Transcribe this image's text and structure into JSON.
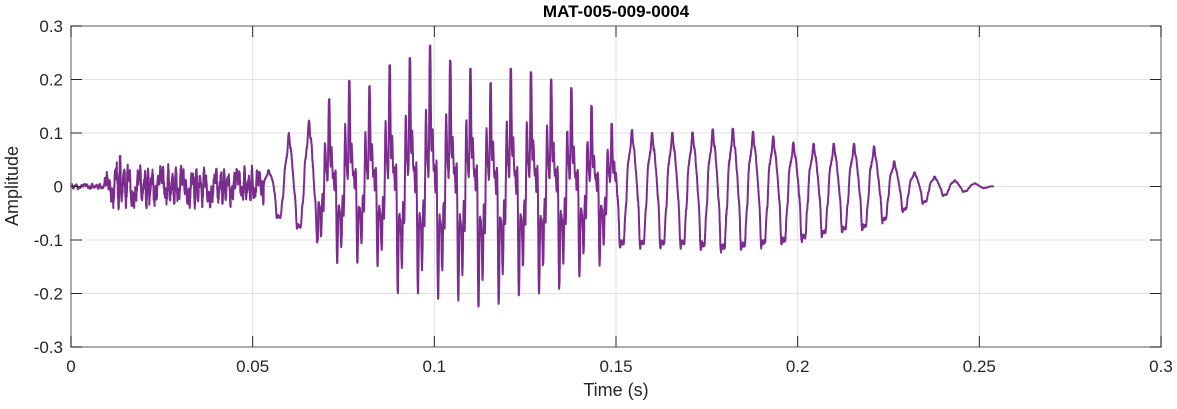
{
  "chart_data": {
    "type": "line",
    "title": "MAT-005-009-0004",
    "xlabel": "Time (s)",
    "ylabel": "Amplitude",
    "xlim": [
      0,
      0.3
    ],
    "ylim": [
      -0.3,
      0.3
    ],
    "grid": true,
    "xticks": [
      0,
      0.05,
      0.1,
      0.15,
      0.2,
      0.25,
      0.3
    ],
    "xtick_labels": [
      "0",
      "0.05",
      "0.1",
      "0.15",
      "0.2",
      "0.25",
      "0.3"
    ],
    "yticks": [
      -0.3,
      -0.2,
      -0.1,
      0,
      0.1,
      0.2,
      0.3
    ],
    "ytick_labels": [
      "-0.3",
      "-0.2",
      "-0.1",
      "0",
      "0.1",
      "0.2",
      "0.3"
    ],
    "series": [
      {
        "name": "waveform",
        "color": "#7b2d8e",
        "f0_hz": 180,
        "duration_s": 0.254,
        "envelope": {
          "t": [
            0,
            0.009,
            0.011,
            0.02,
            0.05,
            0.055,
            0.06,
            0.065,
            0.07,
            0.075,
            0.08,
            0.085,
            0.09,
            0.095,
            0.1,
            0.105,
            0.11,
            0.115,
            0.12,
            0.125,
            0.13,
            0.135,
            0.14,
            0.145,
            0.15,
            0.16,
            0.17,
            0.18,
            0.19,
            0.2,
            0.21,
            0.22,
            0.225,
            0.23,
            0.24,
            0.25,
            0.254
          ],
          "peak": [
            0.005,
            0.005,
            0.07,
            0.04,
            0.035,
            0.03,
            0.1,
            0.12,
            0.15,
            0.21,
            0.17,
            0.21,
            0.24,
            0.24,
            0.27,
            0.23,
            0.22,
            0.19,
            0.22,
            0.22,
            0.2,
            0.2,
            0.17,
            0.14,
            0.11,
            0.1,
            0.1,
            0.11,
            0.1,
            0.08,
            0.08,
            0.08,
            0.055,
            0.03,
            0.015,
            0.005,
            0
          ],
          "trough": [
            -0.005,
            -0.005,
            -0.04,
            -0.04,
            -0.035,
            -0.06,
            -0.08,
            -0.1,
            -0.13,
            -0.15,
            -0.14,
            -0.15,
            -0.2,
            -0.2,
            -0.21,
            -0.21,
            -0.22,
            -0.23,
            -0.21,
            -0.2,
            -0.2,
            -0.19,
            -0.17,
            -0.15,
            -0.13,
            -0.13,
            -0.13,
            -0.14,
            -0.13,
            -0.12,
            -0.1,
            -0.09,
            -0.07,
            -0.05,
            -0.02,
            -0.005,
            0
          ]
        }
      }
    ]
  }
}
